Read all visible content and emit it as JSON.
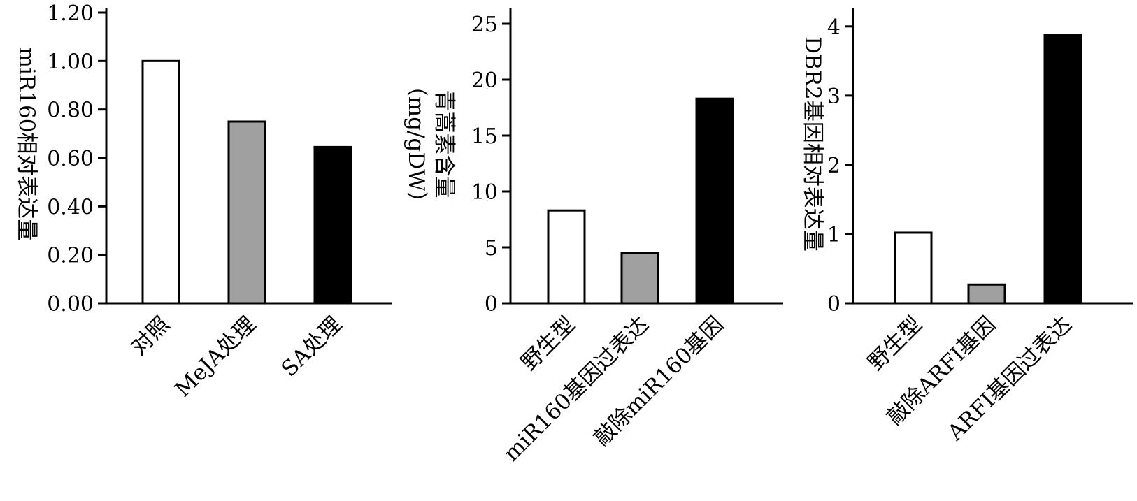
{
  "chart_data": [
    {
      "type": "bar",
      "title": "",
      "xlabel": "",
      "ylabel": "miR160相对表达量",
      "ylabel_lines": [
        "miR160相对表达量"
      ],
      "categories": [
        "对照",
        "MeJA处理",
        "SA处理"
      ],
      "values": [
        1.0,
        0.75,
        0.645
      ],
      "bar_colors": [
        "#ffffff",
        "#a0a0a0",
        "#000000"
      ],
      "ylim": [
        0,
        1.2
      ],
      "yticks": [
        "0.00",
        "0.20",
        "0.40",
        "0.60",
        "0.80",
        "1.00",
        "1.20"
      ],
      "grid": false
    },
    {
      "type": "bar",
      "title": "",
      "xlabel": "",
      "ylabel": "青蒿素含量（mg/gDW）",
      "ylabel_lines": [
        "青蒿素含量",
        "（mg/gDW）"
      ],
      "categories": [
        "野生型",
        "miR160基因过表达",
        "敲除miR160基因"
      ],
      "values": [
        8.3,
        4.5,
        18.3
      ],
      "bar_colors": [
        "#ffffff",
        "#a0a0a0",
        "#000000"
      ],
      "ylim": [
        0,
        26
      ],
      "yticks": [
        "0",
        "5",
        "10",
        "15",
        "20",
        "25"
      ],
      "grid": false
    },
    {
      "type": "bar",
      "title": "",
      "xlabel": "",
      "ylabel": "DBR2基因相对表达量",
      "ylabel_lines": [
        "DBR2基因相对表达量"
      ],
      "categories": [
        "野生型",
        "敲除ARFI基因",
        "ARFI基因过表达"
      ],
      "values": [
        1.02,
        0.27,
        3.88
      ],
      "bar_colors": [
        "#ffffff",
        "#a0a0a0",
        "#000000"
      ],
      "ylim": [
        0,
        4.2
      ],
      "yticks": [
        "0",
        "1",
        "2",
        "3",
        "4"
      ],
      "grid": false
    }
  ]
}
